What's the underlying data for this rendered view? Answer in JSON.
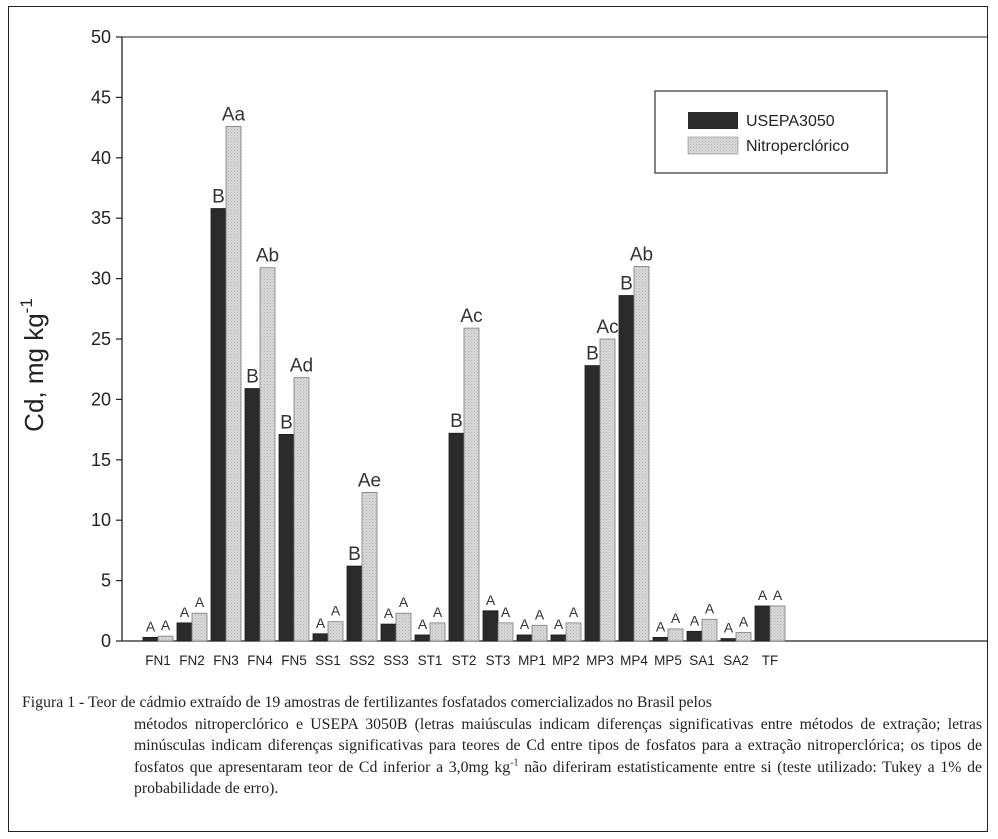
{
  "chart_data": {
    "type": "bar",
    "ylabel": "Cd, mg kg",
    "ylabel_sup": "-1",
    "ylim": [
      0,
      50
    ],
    "yticks": [
      "0",
      "5",
      "10",
      "15",
      "20",
      "25",
      "30",
      "35",
      "40",
      "45",
      "50"
    ],
    "grid": false,
    "legend_position": "top-right",
    "categories": [
      "FN1",
      "FN2",
      "FN3",
      "FN4",
      "FN5",
      "SS1",
      "SS2",
      "SS3",
      "ST1",
      "ST2",
      "ST3",
      "MP1",
      "MP2",
      "MP3",
      "MP4",
      "MP5",
      "SA1",
      "SA2",
      "TF"
    ],
    "series": [
      {
        "name": "USEPA3050",
        "color": "#2b2b2b",
        "values": [
          0.3,
          1.5,
          35.8,
          20.9,
          17.1,
          0.6,
          6.2,
          1.4,
          0.5,
          17.2,
          2.5,
          0.5,
          0.5,
          22.8,
          28.6,
          0.3,
          0.8,
          0.2,
          2.9
        ],
        "labels": [
          "A",
          "A",
          "B",
          "B",
          "B",
          "A",
          "B",
          "A",
          "A",
          "B",
          "A",
          "A",
          "A",
          "B",
          "B",
          "A",
          "A",
          "A",
          "A"
        ]
      },
      {
        "name": "Nitroperclórico",
        "color": "#d4d4d4",
        "values": [
          0.4,
          2.3,
          42.6,
          30.9,
          21.8,
          1.6,
          12.3,
          2.3,
          1.5,
          25.9,
          1.5,
          1.3,
          1.5,
          25.0,
          31.0,
          1.0,
          1.8,
          0.7,
          2.9
        ],
        "labels": [
          "A",
          "A",
          "Aa",
          "Ab",
          "Ad",
          "A",
          "Ae",
          "A",
          "A",
          "Ac",
          "A",
          "A",
          "A",
          "Ac",
          "Ab",
          "A",
          "A",
          "A",
          "A"
        ]
      }
    ]
  },
  "caption": {
    "lead": "Figura 1 - Teor de cádmio extraído de 19 amostras de fertilizantes fosfatados comercializados no Brasil pelos",
    "body_1": "métodos nitroperclórico e USEPA 3050B (letras maiúsculas indicam diferenças significativas entre métodos de extração; letras minúsculas indicam diferenças significativas para teores de Cd entre tipos de fosfatos para a extração nitroperclórica; os tipos de fosfatos que apresentaram teor de Cd inferior a 3,0mg kg",
    "body_sup": "-1",
    "body_2": " não diferiram estatisticamente entre si (teste utilizado: Tukey a 1% de probabilidade de erro)."
  }
}
